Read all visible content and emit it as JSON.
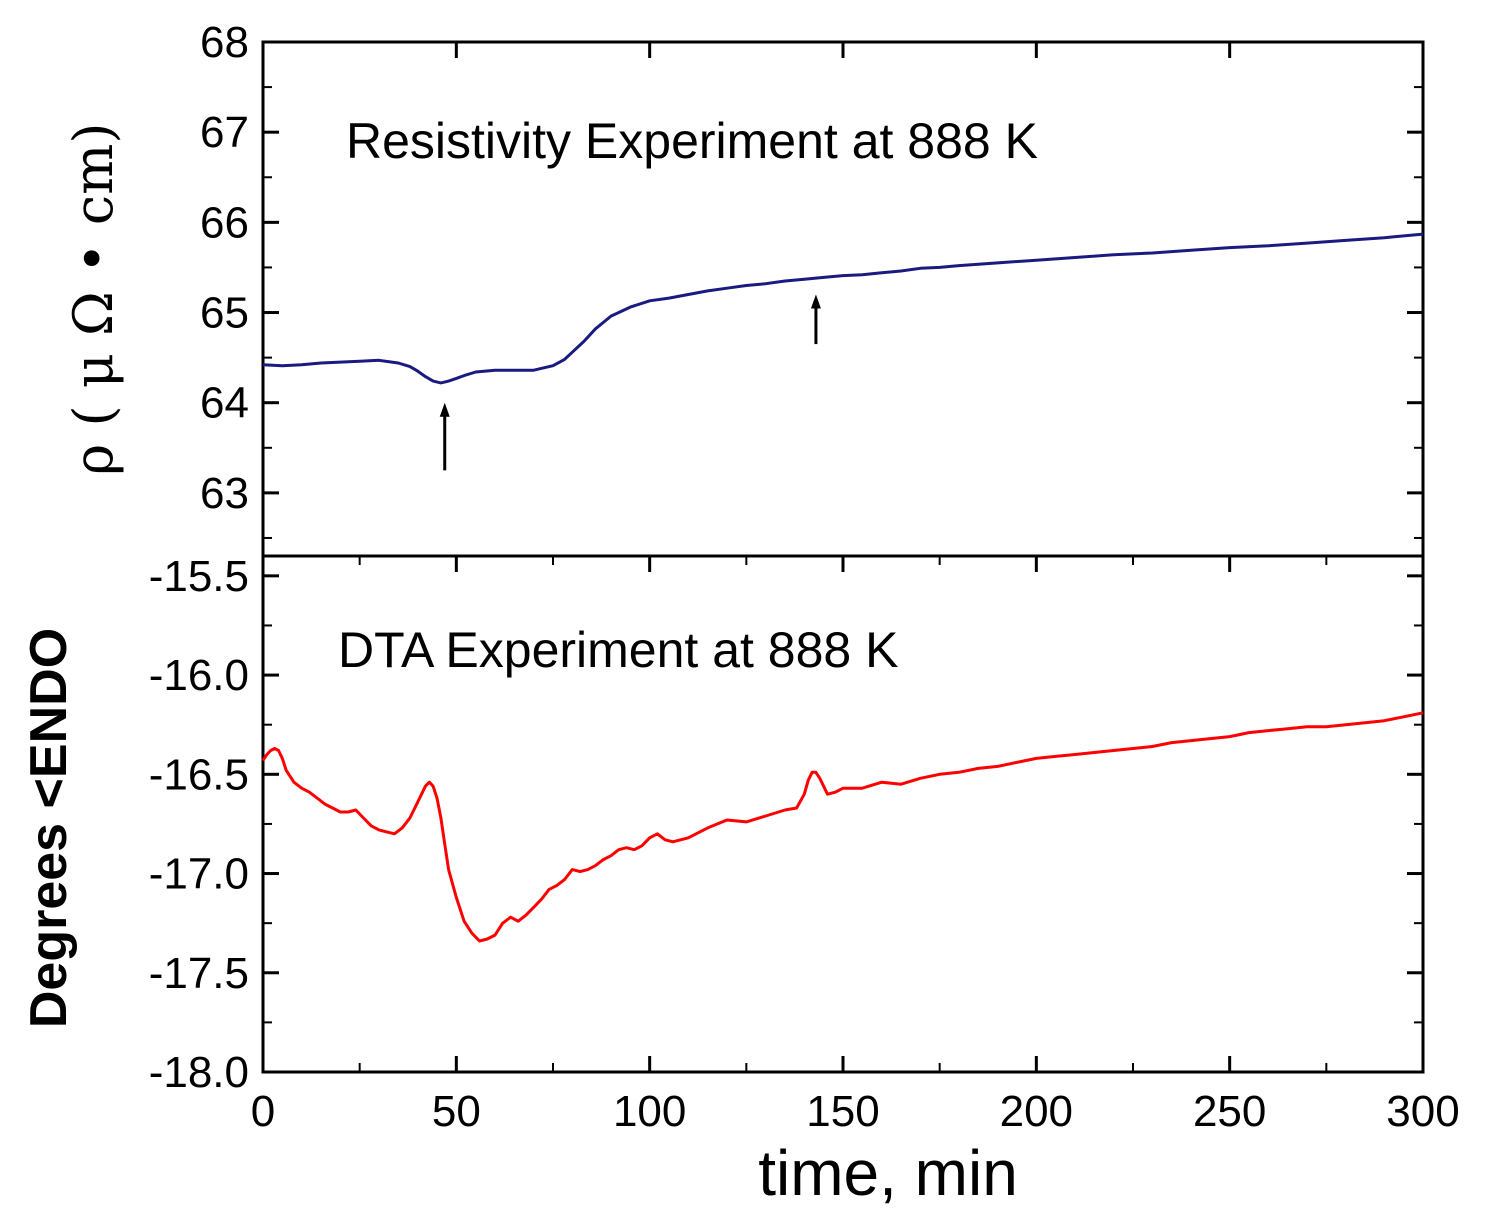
{
  "chart_data": [
    {
      "type": "line",
      "panel": "top",
      "title": "Resistivity Experiment at 888 K",
      "ylabel": "ρ ( μ Ω • cm)",
      "xlabel": "time, min",
      "xlim": [
        0,
        300
      ],
      "ylim": [
        62.3,
        68
      ],
      "yticks": [
        63,
        64,
        65,
        66,
        67,
        68
      ],
      "ytick_labels": [
        "63",
        "64",
        "65",
        "66",
        "67",
        "68"
      ],
      "grid": false,
      "series": [
        {
          "color": "#1a1a80",
          "x": [
            0,
            5,
            10,
            15,
            20,
            25,
            30,
            35,
            38,
            40,
            42,
            44,
            46,
            48,
            50,
            52,
            55,
            60,
            65,
            70,
            75,
            78,
            80,
            83,
            86,
            90,
            95,
            100,
            105,
            110,
            115,
            120,
            125,
            130,
            135,
            140,
            145,
            150,
            155,
            160,
            165,
            170,
            175,
            180,
            190,
            200,
            210,
            220,
            230,
            240,
            250,
            260,
            270,
            280,
            290,
            300
          ],
          "y": [
            64.42,
            64.41,
            64.42,
            64.44,
            64.45,
            64.46,
            64.47,
            64.44,
            64.4,
            64.35,
            64.29,
            64.24,
            64.22,
            64.24,
            64.27,
            64.3,
            64.34,
            64.36,
            64.36,
            64.36,
            64.41,
            64.48,
            64.56,
            64.68,
            64.82,
            64.96,
            65.06,
            65.13,
            65.16,
            65.2,
            65.24,
            65.27,
            65.3,
            65.32,
            65.35,
            65.37,
            65.39,
            65.41,
            65.42,
            65.44,
            65.46,
            65.49,
            65.5,
            65.52,
            65.55,
            65.58,
            65.61,
            65.64,
            65.66,
            65.69,
            65.72,
            65.74,
            65.77,
            65.8,
            65.83,
            65.87
          ]
        }
      ],
      "annotations": [
        {
          "type": "arrow",
          "x": 47,
          "y_from": 63.25,
          "y_to": 64.0
        },
        {
          "type": "arrow",
          "x": 143,
          "y_from": 64.65,
          "y_to": 65.2
        }
      ]
    },
    {
      "type": "line",
      "panel": "bottom",
      "title": "DTA Experiment at 888 K",
      "ylabel": "Degrees  <ENDO",
      "xlabel": "time, min",
      "xlim": [
        0,
        300
      ],
      "ylim": [
        -18.0,
        -15.4
      ],
      "yticks": [
        -18.0,
        -17.5,
        -17.0,
        -16.5,
        -16.0,
        -15.5
      ],
      "ytick_labels": [
        "-18.0",
        "-17.5",
        "-17.0",
        "-16.5",
        "-16.0",
        "-15.5"
      ],
      "xticks": [
        0,
        50,
        100,
        150,
        200,
        250,
        300
      ],
      "xtick_labels": [
        "0",
        "50",
        "100",
        "150",
        "200",
        "250",
        "300"
      ],
      "grid": false,
      "series": [
        {
          "color": "#ff0000",
          "x": [
            0,
            1,
            2,
            3,
            4,
            5,
            6,
            8,
            10,
            12,
            14,
            16,
            18,
            20,
            22,
            24,
            26,
            28,
            30,
            32,
            34,
            36,
            38,
            40,
            42,
            43,
            44,
            45,
            46,
            47,
            48,
            50,
            52,
            54,
            56,
            58,
            60,
            62,
            64,
            66,
            68,
            70,
            72,
            74,
            76,
            78,
            80,
            82,
            84,
            86,
            88,
            90,
            92,
            94,
            96,
            98,
            100,
            102,
            104,
            106,
            108,
            110,
            115,
            120,
            125,
            130,
            135,
            138,
            140,
            141,
            142,
            143,
            144,
            146,
            148,
            150,
            155,
            160,
            165,
            170,
            175,
            180,
            185,
            190,
            195,
            200,
            205,
            210,
            215,
            220,
            225,
            230,
            235,
            240,
            245,
            250,
            255,
            260,
            265,
            270,
            275,
            280,
            285,
            290,
            295,
            300
          ],
          "y": [
            -16.43,
            -16.4,
            -16.38,
            -16.37,
            -16.38,
            -16.42,
            -16.48,
            -16.54,
            -16.57,
            -16.59,
            -16.62,
            -16.65,
            -16.67,
            -16.69,
            -16.69,
            -16.68,
            -16.72,
            -16.76,
            -16.78,
            -16.79,
            -16.8,
            -16.77,
            -16.72,
            -16.64,
            -16.56,
            -16.54,
            -16.56,
            -16.62,
            -16.72,
            -16.85,
            -16.98,
            -17.12,
            -17.24,
            -17.3,
            -17.34,
            -17.33,
            -17.31,
            -17.25,
            -17.22,
            -17.24,
            -17.21,
            -17.17,
            -17.13,
            -17.08,
            -17.06,
            -17.03,
            -16.98,
            -16.99,
            -16.98,
            -16.96,
            -16.93,
            -16.91,
            -16.88,
            -16.87,
            -16.88,
            -16.86,
            -16.82,
            -16.8,
            -16.83,
            -16.84,
            -16.83,
            -16.82,
            -16.77,
            -16.73,
            -16.74,
            -16.71,
            -16.68,
            -16.67,
            -16.6,
            -16.53,
            -16.49,
            -16.49,
            -16.52,
            -16.6,
            -16.59,
            -16.57,
            -16.57,
            -16.54,
            -16.55,
            -16.52,
            -16.5,
            -16.49,
            -16.47,
            -16.46,
            -16.44,
            -16.42,
            -16.41,
            -16.4,
            -16.39,
            -16.38,
            -16.37,
            -16.36,
            -16.34,
            -16.33,
            -16.32,
            -16.31,
            -16.29,
            -16.28,
            -16.27,
            -16.26,
            -16.26,
            -16.25,
            -16.24,
            -16.23,
            -16.21,
            -16.19
          ]
        }
      ]
    }
  ]
}
